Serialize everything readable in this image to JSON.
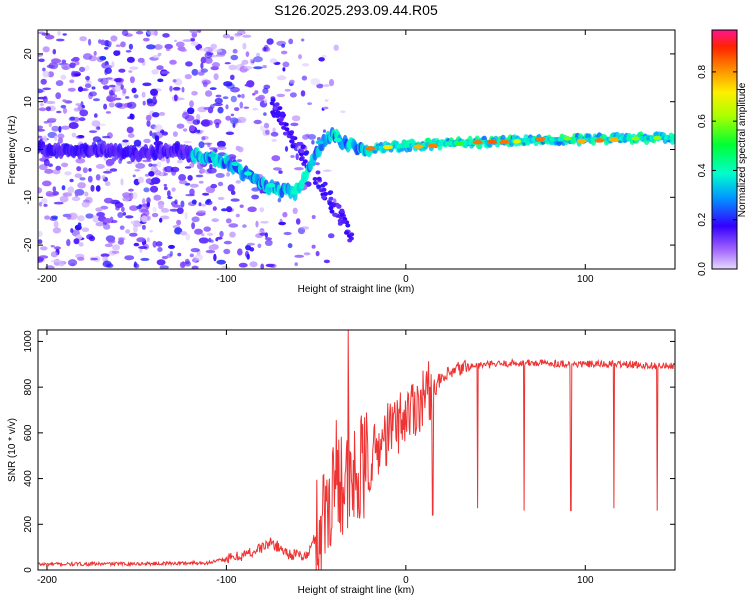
{
  "title": "S126.2025.293.09.44.R05",
  "chart_data": [
    {
      "type": "heatmap",
      "name": "spectrogram",
      "xlabel": "Height of straight line (km)",
      "ylabel": "Frequency (Hz)",
      "xlim": [
        -205,
        150
      ],
      "ylim": [
        -25,
        25
      ],
      "xticks": [
        -200,
        -100,
        0,
        100
      ],
      "yticks": [
        -20,
        -10,
        0,
        10,
        20
      ],
      "colorbar": {
        "label": "Normalized spectral amplitude",
        "range": [
          0,
          0.97
        ],
        "ticks": [
          0.0,
          0.2,
          0.4,
          0.6,
          0.8
        ]
      },
      "ridge": [
        {
          "x": -205,
          "y": 0.5
        },
        {
          "x": -190,
          "y": -0.5
        },
        {
          "x": -170,
          "y": 0.2
        },
        {
          "x": -150,
          "y": -1.0
        },
        {
          "x": -130,
          "y": 0.0
        },
        {
          "x": -115,
          "y": -1.5
        },
        {
          "x": -100,
          "y": -2.5
        },
        {
          "x": -90,
          "y": -5.0
        },
        {
          "x": -80,
          "y": -7.0
        },
        {
          "x": -72,
          "y": -8.5
        },
        {
          "x": -62,
          "y": -9.0
        },
        {
          "x": -55,
          "y": -5.0
        },
        {
          "x": -50,
          "y": -1.0
        },
        {
          "x": -45,
          "y": 2.0
        },
        {
          "x": -40,
          "y": 3.0
        },
        {
          "x": -35,
          "y": 1.5
        },
        {
          "x": -25,
          "y": 0.0
        },
        {
          "x": -15,
          "y": 0.3
        },
        {
          "x": 0,
          "y": 0.8
        },
        {
          "x": 20,
          "y": 1.2
        },
        {
          "x": 40,
          "y": 1.5
        },
        {
          "x": 60,
          "y": 1.8
        },
        {
          "x": 80,
          "y": 2.2
        },
        {
          "x": 100,
          "y": 2.0
        },
        {
          "x": 120,
          "y": 2.3
        },
        {
          "x": 150,
          "y": 2.4
        }
      ]
    },
    {
      "type": "line",
      "name": "snr",
      "xlabel": "Height of straight line (km)",
      "ylabel": "SNR (10 * v/v)",
      "xlim": [
        -205,
        150
      ],
      "ylim": [
        0,
        1050
      ],
      "xticks": [
        -200,
        -100,
        0,
        100
      ],
      "yticks": [
        0,
        200,
        400,
        600,
        800,
        1000
      ],
      "color": "#ee3333",
      "trend": [
        {
          "x": -205,
          "y": 25
        },
        {
          "x": -140,
          "y": 28
        },
        {
          "x": -110,
          "y": 32
        },
        {
          "x": -95,
          "y": 55
        },
        {
          "x": -85,
          "y": 80
        },
        {
          "x": -75,
          "y": 120
        },
        {
          "x": -65,
          "y": 70
        },
        {
          "x": -55,
          "y": 60
        },
        {
          "x": -45,
          "y": 250
        },
        {
          "x": -38,
          "y": 450
        },
        {
          "x": -32,
          "y": 350
        },
        {
          "x": -25,
          "y": 420
        },
        {
          "x": -18,
          "y": 500
        },
        {
          "x": -10,
          "y": 600
        },
        {
          "x": 0,
          "y": 680
        },
        {
          "x": 10,
          "y": 760
        },
        {
          "x": 20,
          "y": 830
        },
        {
          "x": 30,
          "y": 880
        },
        {
          "x": 40,
          "y": 895
        },
        {
          "x": 60,
          "y": 905
        },
        {
          "x": 80,
          "y": 905
        },
        {
          "x": 100,
          "y": 900
        },
        {
          "x": 120,
          "y": 900
        },
        {
          "x": 150,
          "y": 890
        }
      ],
      "spikes": [
        {
          "x": 40,
          "y": 270
        },
        {
          "x": 66,
          "y": 260
        },
        {
          "x": 92,
          "y": 260
        },
        {
          "x": 116,
          "y": 270
        },
        {
          "x": 140,
          "y": 260
        },
        {
          "x": 15,
          "y": 240
        },
        {
          "x": -32,
          "y": 1050
        }
      ]
    }
  ]
}
